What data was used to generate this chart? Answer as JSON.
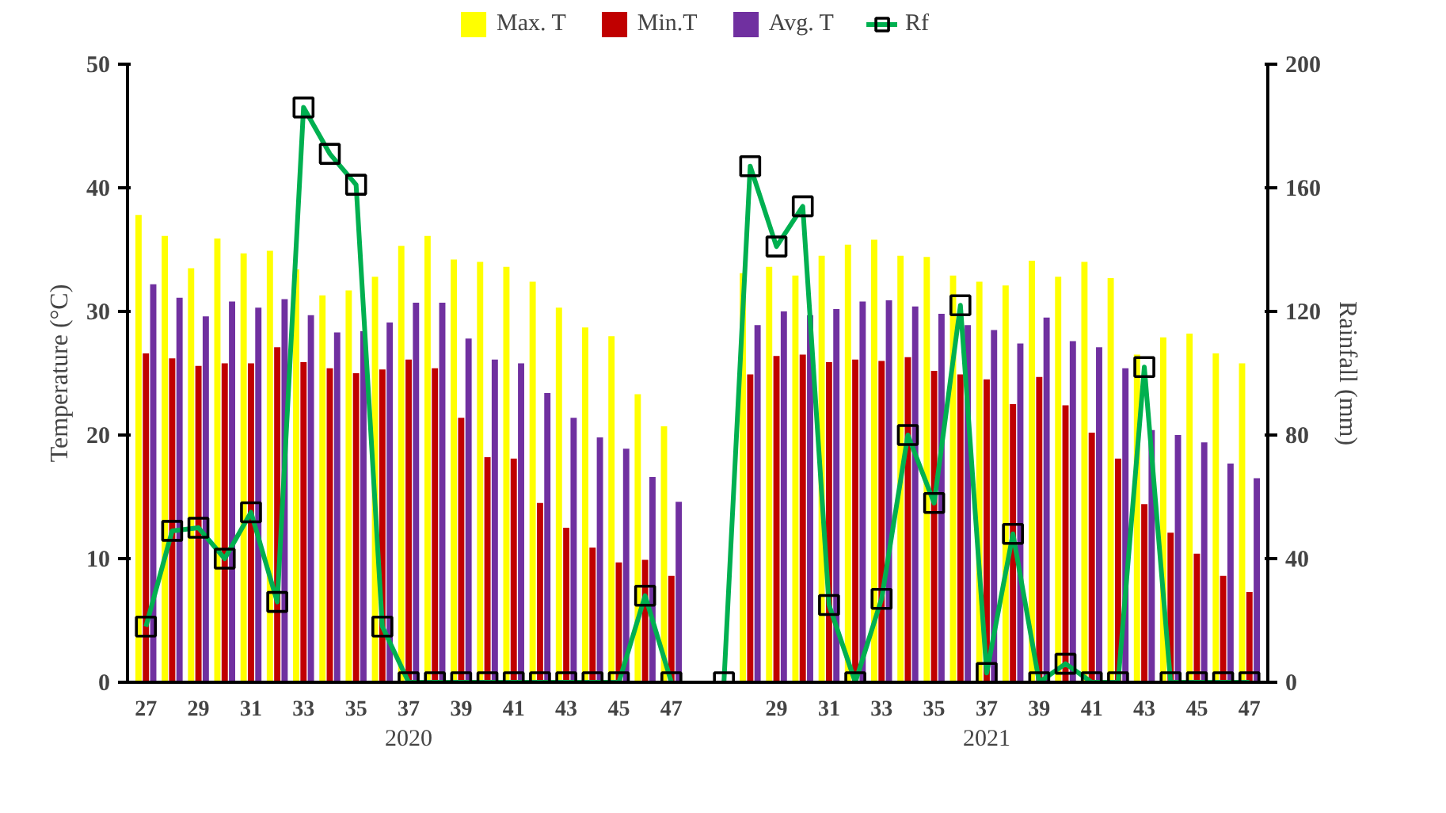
{
  "chart_data": {
    "type": "bar",
    "ylabel": "Temperature (°C)",
    "y2label": "Rainfall (mm)",
    "categories": [
      "27",
      null,
      "29",
      null,
      "31",
      null,
      "33",
      null,
      "35",
      null,
      "37",
      null,
      "39",
      null,
      "41",
      null,
      "43",
      null,
      "45",
      null,
      "47",
      null,
      null,
      null,
      "29",
      null,
      "31",
      null,
      "33",
      null,
      "35",
      null,
      "37",
      null,
      "39",
      null,
      "41",
      null,
      "43",
      null,
      "45",
      null,
      "47"
    ],
    "series": [
      {
        "name": "Max. T",
        "color": "#ffff00",
        "values": [
          37.8,
          36.1,
          33.5,
          35.9,
          34.7,
          34.9,
          33.4,
          31.3,
          31.7,
          32.8,
          35.3,
          36.1,
          34.2,
          34.0,
          33.6,
          32.4,
          30.3,
          28.7,
          28.0,
          23.3,
          20.7,
          null,
          null,
          33.1,
          33.6,
          32.9,
          34.5,
          35.4,
          35.8,
          34.5,
          34.4,
          32.9,
          32.4,
          32.1,
          34.1,
          32.8,
          34.0,
          32.7,
          26.5,
          27.9,
          28.2,
          26.6,
          25.8
        ]
      },
      {
        "name": "Min.T",
        "color": "#c00000",
        "values": [
          26.6,
          26.2,
          25.6,
          25.8,
          25.8,
          27.1,
          25.9,
          25.4,
          25.0,
          25.3,
          26.1,
          25.4,
          21.4,
          18.2,
          18.1,
          14.5,
          12.5,
          10.9,
          9.7,
          9.9,
          8.6,
          null,
          null,
          24.9,
          26.4,
          26.5,
          25.9,
          26.1,
          26.0,
          26.3,
          25.2,
          24.9,
          24.5,
          22.5,
          24.7,
          22.4,
          20.2,
          18.1,
          14.4,
          12.1,
          10.4,
          8.6,
          7.3
        ]
      },
      {
        "name": "Avg. T",
        "color": "#7030a0",
        "values": [
          32.2,
          31.1,
          29.6,
          30.8,
          30.3,
          31.0,
          29.7,
          28.3,
          28.4,
          29.1,
          30.7,
          30.7,
          27.8,
          26.1,
          25.8,
          23.4,
          21.4,
          19.8,
          18.9,
          16.6,
          14.6,
          null,
          null,
          28.9,
          30.0,
          29.7,
          30.2,
          30.8,
          30.9,
          30.4,
          29.8,
          28.9,
          28.5,
          27.4,
          29.5,
          27.6,
          27.1,
          25.4,
          20.4,
          20.0,
          19.4,
          17.7,
          16.5
        ]
      },
      {
        "name": "Rf",
        "type": "line",
        "axis": "y2",
        "color": "#00b050",
        "values": [
          18,
          49,
          50,
          40,
          55,
          26,
          186,
          171,
          161,
          18,
          0,
          0,
          0,
          0,
          0,
          0,
          0,
          0,
          0,
          28,
          0,
          null,
          0,
          167,
          141,
          154,
          25,
          0,
          27,
          80,
          58,
          122,
          3,
          48,
          0,
          6,
          0,
          0,
          102,
          0,
          0,
          0,
          0
        ]
      }
    ],
    "ylim": [
      0,
      50
    ],
    "yticks": [
      0,
      10,
      20,
      30,
      40,
      50
    ],
    "y2lim": [
      0,
      200
    ],
    "y2ticks": [
      0,
      40,
      80,
      120,
      160,
      200
    ],
    "annotations": [
      "2020",
      "2021"
    ],
    "marker": "square",
    "legend": "top",
    "grid": false
  }
}
